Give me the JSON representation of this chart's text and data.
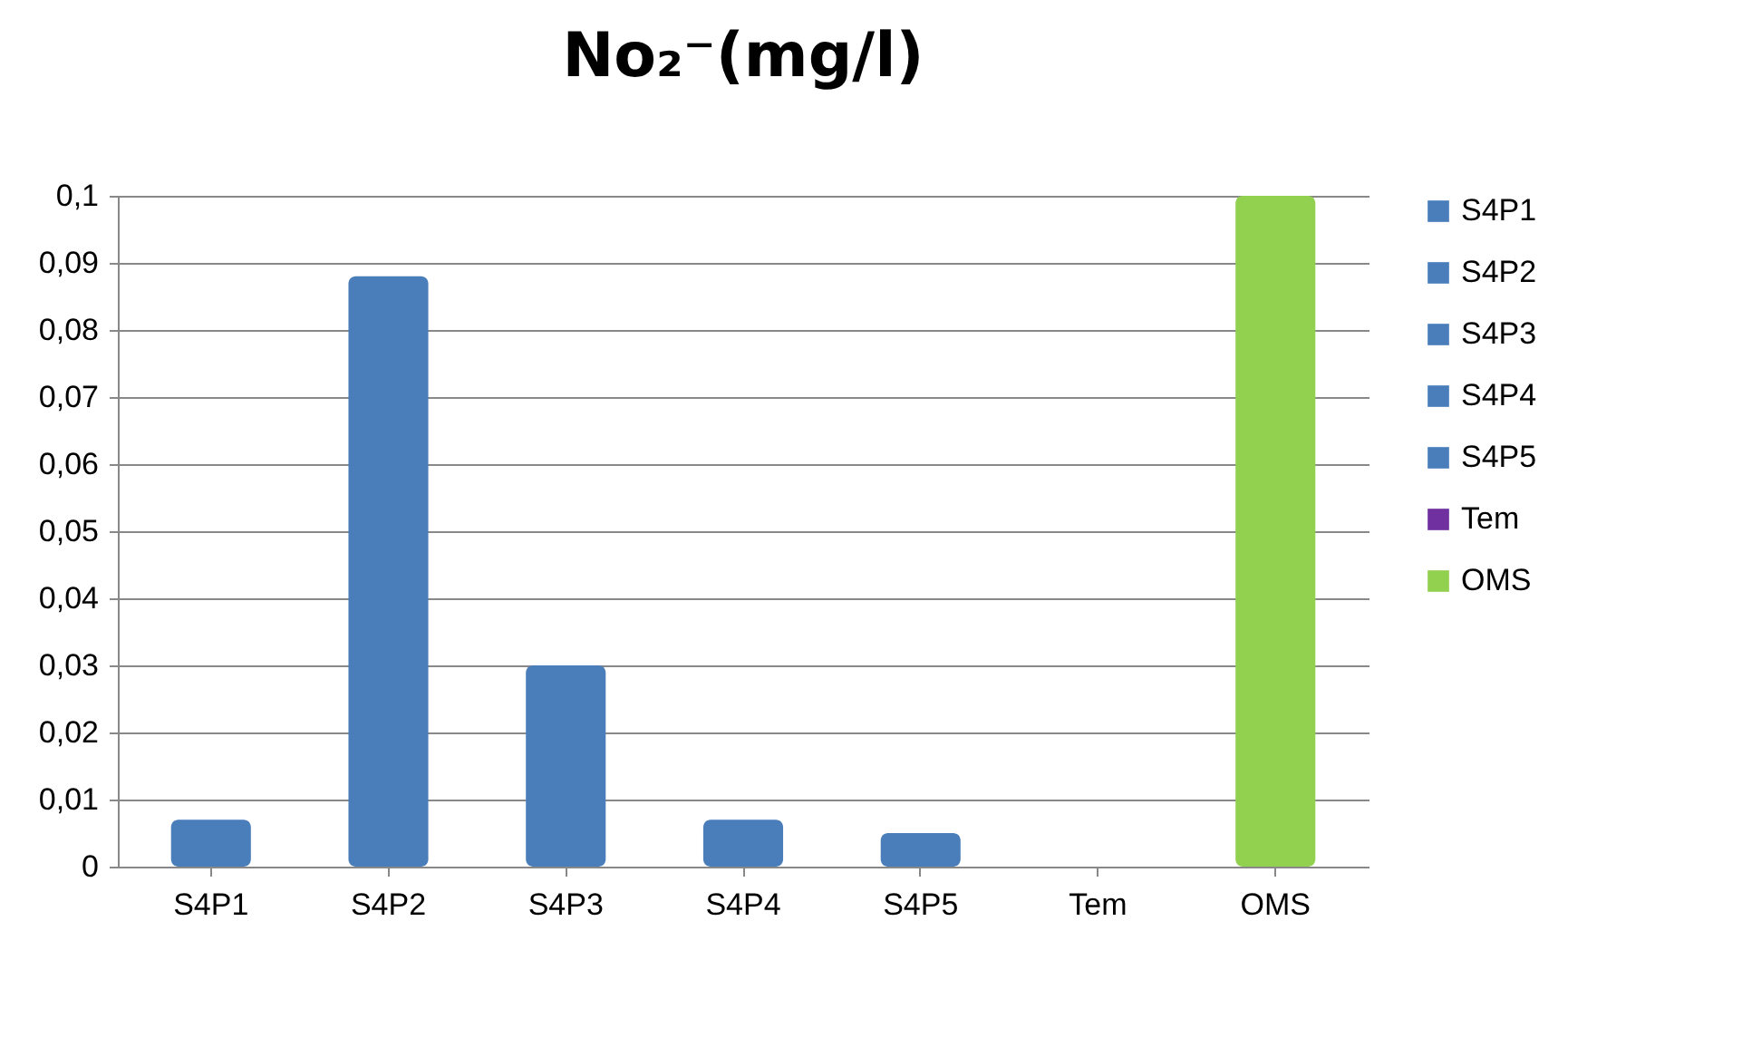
{
  "chart_data": {
    "type": "bar",
    "title": "No₂⁻(mg/l)",
    "categories": [
      "S4P1",
      "S4P2",
      "S4P3",
      "S4P4",
      "S4P5",
      "Tem",
      "OMS"
    ],
    "series": [
      {
        "name": "S4P1",
        "color": "#4a7ebb",
        "values": [
          0.007,
          null,
          null,
          null,
          null,
          null,
          null
        ]
      },
      {
        "name": "S4P2",
        "color": "#4a7ebb",
        "values": [
          null,
          0.088,
          null,
          null,
          null,
          null,
          null
        ]
      },
      {
        "name": "S4P3",
        "color": "#4a7ebb",
        "values": [
          null,
          null,
          0.03,
          null,
          null,
          null,
          null
        ]
      },
      {
        "name": "S4P4",
        "color": "#4a7ebb",
        "values": [
          null,
          null,
          null,
          0.007,
          null,
          null,
          null
        ]
      },
      {
        "name": "S4P5",
        "color": "#4a7ebb",
        "values": [
          null,
          null,
          null,
          null,
          0.005,
          null,
          null
        ]
      },
      {
        "name": "Tem",
        "color": "#7030a0",
        "values": [
          null,
          null,
          null,
          null,
          null,
          0,
          null
        ]
      },
      {
        "name": "OMS",
        "color": "#92d050",
        "values": [
          null,
          null,
          null,
          null,
          null,
          null,
          0.1
        ]
      }
    ],
    "ylim": [
      0,
      0.1
    ],
    "yticks": [
      {
        "value": 0,
        "label": "0"
      },
      {
        "value": 0.01,
        "label": "0,01"
      },
      {
        "value": 0.02,
        "label": "0,02"
      },
      {
        "value": 0.03,
        "label": "0,03"
      },
      {
        "value": 0.04,
        "label": "0,04"
      },
      {
        "value": 0.05,
        "label": "0,05"
      },
      {
        "value": 0.06,
        "label": "0,06"
      },
      {
        "value": 0.07,
        "label": "0,07"
      },
      {
        "value": 0.08,
        "label": "0,08"
      },
      {
        "value": 0.09,
        "label": "0,09"
      },
      {
        "value": 0.1,
        "label": "0,1"
      }
    ],
    "grid": "y",
    "legend": "right"
  }
}
